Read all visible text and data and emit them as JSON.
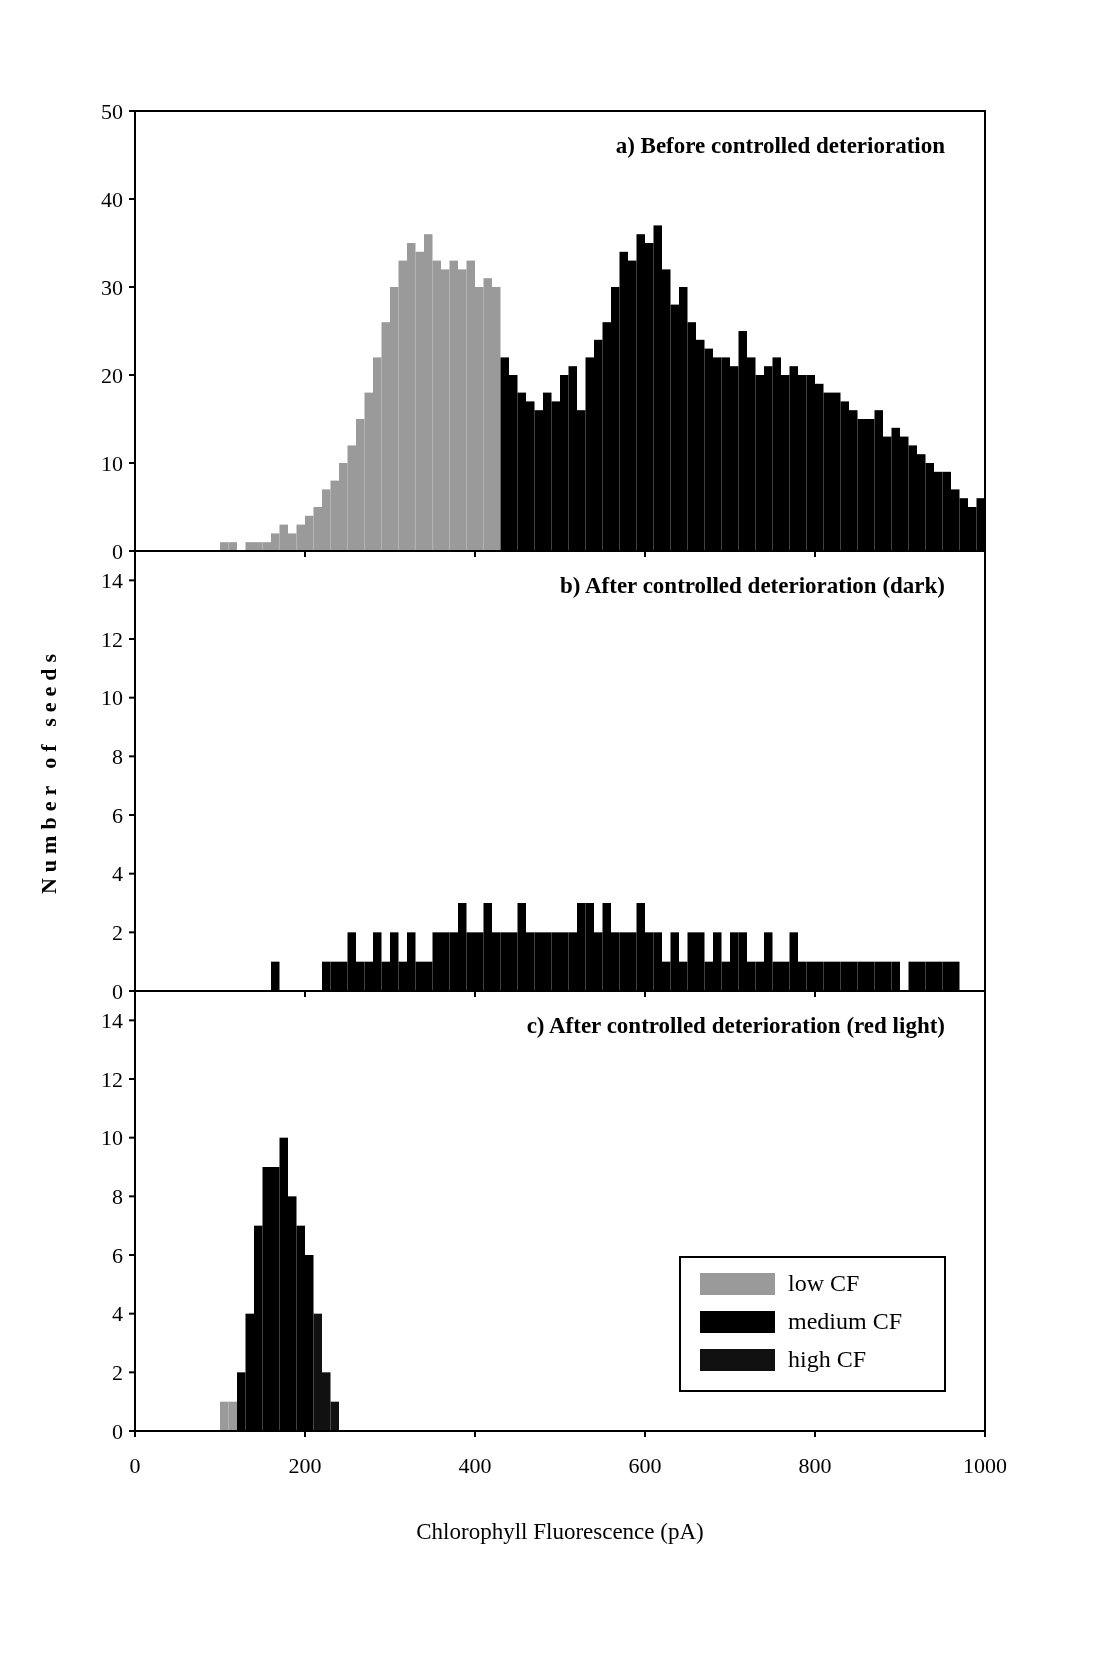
{
  "chart_data": [
    {
      "type": "histogram",
      "title": "a) Before controlled deterioration",
      "bins": [
        100,
        110,
        120,
        130,
        140,
        150,
        160,
        170,
        180,
        190,
        200,
        210,
        220,
        230,
        240,
        250,
        260,
        270,
        280,
        290,
        300,
        310,
        320,
        330,
        340,
        350,
        360,
        370,
        380,
        390,
        400,
        410,
        420,
        430,
        440,
        450,
        460,
        470,
        480,
        490,
        500,
        510,
        520,
        530,
        540,
        550,
        560,
        570,
        580,
        590,
        600,
        610,
        620,
        630,
        640,
        650,
        660,
        670,
        680,
        690,
        700,
        710,
        720,
        730,
        740,
        750,
        760,
        770,
        780,
        790,
        800,
        810,
        820,
        830,
        840,
        850,
        860,
        870,
        880,
        890,
        900,
        910,
        920,
        930,
        940,
        950,
        960,
        970,
        980,
        990,
        1000
      ],
      "series": [
        {
          "color": "#9a9a9a",
          "values": [
            1,
            1,
            0,
            1,
            1,
            1,
            2,
            3,
            2,
            3,
            4,
            5,
            7,
            8,
            10,
            12,
            15,
            18,
            22,
            26,
            30,
            33,
            35,
            34,
            36,
            33,
            32,
            33,
            32,
            33,
            30,
            31,
            30,
            null,
            null,
            null,
            null,
            null,
            null,
            null,
            null,
            null,
            null,
            null,
            null,
            null,
            null,
            null,
            null,
            null,
            null,
            null,
            null,
            null,
            null,
            null,
            null,
            null,
            null,
            null,
            null,
            null,
            null,
            null,
            null,
            null,
            null,
            null,
            null,
            null,
            null,
            null,
            null,
            null,
            null,
            null,
            null,
            null,
            null,
            null,
            null,
            null,
            null,
            null,
            null,
            null,
            null,
            null,
            null,
            null
          ]
        },
        {
          "color": "#000000",
          "values": [
            null,
            null,
            null,
            null,
            null,
            null,
            null,
            null,
            null,
            null,
            null,
            null,
            null,
            null,
            null,
            null,
            null,
            null,
            null,
            null,
            null,
            null,
            null,
            null,
            null,
            null,
            null,
            null,
            null,
            null,
            null,
            null,
            null,
            22,
            20,
            18,
            17,
            16,
            18,
            17,
            20,
            21,
            16,
            22,
            24,
            26,
            30,
            34,
            33,
            36,
            35,
            37,
            32,
            28,
            30,
            26,
            24,
            23,
            22,
            22,
            21,
            25,
            22,
            20,
            21,
            22,
            20,
            21,
            20,
            20,
            19,
            18,
            18,
            17,
            16,
            15,
            15,
            16,
            13,
            14,
            13,
            12,
            11,
            10,
            9,
            9,
            7,
            6,
            5,
            6
          ]
        }
      ],
      "xlim": [
        0,
        1000
      ],
      "xticks": [
        0,
        200,
        400,
        600,
        800,
        1000
      ],
      "ylim": [
        0,
        50
      ],
      "yticks": [
        0,
        10,
        20,
        30,
        40,
        50
      ],
      "tick_labels": "y"
    },
    {
      "type": "histogram",
      "title": "b) After controlled deterioration (dark)",
      "ylabel": "Number of seeds",
      "bins": [
        100,
        110,
        120,
        130,
        140,
        150,
        160,
        170,
        180,
        190,
        200,
        210,
        220,
        230,
        240,
        250,
        260,
        270,
        280,
        290,
        300,
        310,
        320,
        330,
        340,
        350,
        360,
        370,
        380,
        390,
        400,
        410,
        420,
        430,
        440,
        450,
        460,
        470,
        480,
        490,
        500,
        510,
        520,
        530,
        540,
        550,
        560,
        570,
        580,
        590,
        600,
        610,
        620,
        630,
        640,
        650,
        660,
        670,
        680,
        690,
        700,
        710,
        720,
        730,
        740,
        750,
        760,
        770,
        780,
        790,
        800,
        810,
        820,
        830,
        840,
        850,
        860,
        870,
        880,
        890,
        900,
        910,
        920,
        930,
        940,
        950,
        960,
        970,
        980,
        990,
        1000
      ],
      "series": [
        {
          "color": "#000000",
          "values": [
            0,
            0,
            0,
            0,
            0,
            0,
            1,
            0,
            0,
            0,
            0,
            0,
            1,
            1,
            1,
            2,
            1,
            1,
            2,
            1,
            2,
            1,
            2,
            1,
            1,
            2,
            2,
            2,
            3,
            2,
            2,
            3,
            2,
            2,
            2,
            3,
            2,
            2,
            2,
            2,
            2,
            2,
            3,
            3,
            2,
            3,
            2,
            2,
            2,
            3,
            2,
            2,
            1,
            2,
            1,
            2,
            2,
            1,
            2,
            1,
            2,
            2,
            1,
            1,
            2,
            1,
            1,
            2,
            1,
            1,
            1,
            1,
            1,
            1,
            1,
            1,
            1,
            1,
            1,
            1,
            0,
            1,
            1,
            1,
            1,
            1,
            1,
            0,
            0,
            0
          ]
        }
      ],
      "xlim": [
        0,
        1000
      ],
      "xticks": [
        0,
        200,
        400,
        600,
        800,
        1000
      ],
      "ylim": [
        0,
        15
      ],
      "yticks": [
        0,
        2,
        4,
        6,
        8,
        10,
        12,
        14
      ],
      "tick_labels": "y"
    },
    {
      "type": "histogram",
      "title": "c) After controlled deterioration (red light)",
      "xlabel": "Chlorophyll Fluorescence (pA)",
      "bins": [
        100,
        110,
        120,
        130,
        140,
        150,
        160,
        170,
        180,
        190,
        200,
        210,
        220,
        230,
        240
      ],
      "series": [
        {
          "name": "low CF",
          "color": "#9a9a9a",
          "values": [
            1,
            1,
            null,
            null,
            null,
            null,
            null,
            null,
            null,
            null,
            null,
            null,
            null,
            null
          ]
        },
        {
          "name": "medium CF",
          "color": "#000000",
          "values": [
            null,
            null,
            2,
            4,
            7,
            9,
            9,
            10,
            8,
            7,
            6,
            null,
            null,
            null
          ]
        },
        {
          "name": "high CF",
          "color": "#111111",
          "values": [
            null,
            null,
            null,
            null,
            null,
            null,
            null,
            null,
            null,
            null,
            null,
            4,
            2,
            1
          ]
        }
      ],
      "xlim": [
        0,
        1000
      ],
      "xticks": [
        0,
        200,
        400,
        600,
        800,
        1000
      ],
      "ylim": [
        0,
        15
      ],
      "yticks": [
        0,
        2,
        4,
        6,
        8,
        10,
        12,
        14
      ],
      "legend": "bottom right"
    }
  ]
}
